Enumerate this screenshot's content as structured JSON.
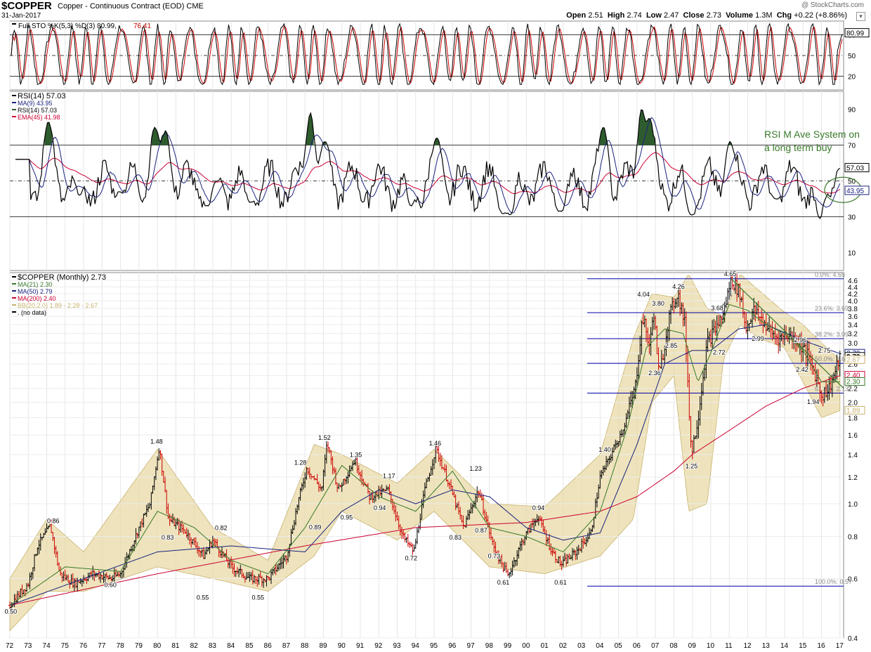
{
  "header": {
    "symbol": "$COPPER",
    "description": "Copper - Continuous Contract (EOD) CME",
    "date": "31-Jan-2017",
    "watermark": "@ StockCharts.com",
    "quote": {
      "open_label": "Open",
      "open": "2.51",
      "high_label": "High",
      "high": "2.74",
      "low_label": "Low",
      "low": "2.47",
      "close_label": "Close",
      "close": "2.73",
      "volume_label": "Volume",
      "volume": "1.3M",
      "chg_label": "Chg",
      "chg": "+0.22 (+8.86%)"
    }
  },
  "annotation": "RSI M Ave System on\na long term buy",
  "colors": {
    "price_up": "#000000",
    "price_down": "#cc0000",
    "ma21": "#3a7a2a",
    "ma50": "#1a237e",
    "ma200": "#cc0033",
    "bb_fill": "#e8d9a6",
    "bb_line": "#c9b26e",
    "fib": "#0000aa",
    "rsi_fill": "#2f5c2f",
    "sto_k": "#000000",
    "sto_d": "#cc0000",
    "note": "#3a7a2a"
  },
  "chart_data": [
    {
      "type": "line",
      "panel": "stochastic",
      "legend": [
        "Full STO %K(5,3) %D(3) 80.99, 76.41"
      ],
      "y_ticks": [
        "80",
        "50",
        "20"
      ],
      "current_k": "80.99",
      "current_d": "76.41",
      "ylim": [
        0,
        100
      ]
    },
    {
      "type": "line",
      "panel": "rsi",
      "legend": [
        "RSI(14) 57.03",
        "MA(9) 43.95",
        "RSI(14) 57.03",
        "EMA(45) 41.98"
      ],
      "y_ticks": [
        "90",
        "70",
        "50",
        "30",
        "10"
      ],
      "current_rsi": "57.03",
      "current_ma": "43.95",
      "current_ema": "41.98",
      "ylim": [
        0,
        100
      ]
    },
    {
      "type": "line",
      "panel": "price",
      "legend": [
        "$COPPER (Monthly) 2.73",
        "MA(21) 2.30",
        "MA(50) 2.79",
        "MA(200) 2.40",
        "BB(20,2.0) 1.89 - 2.28 - 2.67",
        ". (no data)"
      ],
      "y_scale": "log",
      "y_ticks": [
        0.4,
        0.6,
        0.8,
        1.0,
        1.2,
        1.4,
        1.6,
        1.8,
        2.0,
        2.2,
        2.4,
        2.6,
        2.8,
        3.0,
        3.2,
        3.4,
        3.6,
        3.8,
        4.0,
        4.2,
        4.4,
        4.6
      ],
      "y_tick_labels": [
        "0.4",
        "0.6",
        "0.8",
        "1.0",
        "1.2",
        "1.4",
        "1.6",
        "1.8",
        "2.0",
        "2.2",
        "2.4",
        "2.6",
        "2.8",
        "3.0",
        "3.2",
        "3.4",
        "3.6",
        "3.8",
        "4.0",
        "4.2",
        "4.4",
        "4.6"
      ],
      "x_tick_labels": [
        "72",
        "73",
        "74",
        "75",
        "76",
        "77",
        "78",
        "79",
        "80",
        "81",
        "82",
        "83",
        "84",
        "85",
        "86",
        "87",
        "88",
        "89",
        "90",
        "91",
        "92",
        "93",
        "94",
        "95",
        "96",
        "97",
        "98",
        "99",
        "00",
        "01",
        "02",
        "03",
        "04",
        "05",
        "06",
        "07",
        "08",
        "09",
        "10",
        "11",
        "12",
        "13",
        "14",
        "15",
        "16",
        "17"
      ],
      "x_start_year": 1972,
      "series": [
        {
          "name": "$COPPER (Monthly)",
          "x": [
            1972.0,
            1973.0,
            1973.5,
            1974.2,
            1974.7,
            1975.5,
            1976.5,
            1977.5,
            1978.0,
            1979.0,
            1979.6,
            1980.1,
            1980.6,
            1981.5,
            1982.5,
            1983.0,
            1984.0,
            1985.0,
            1986.0,
            1987.0,
            1987.6,
            1988.1,
            1988.9,
            1989.2,
            1989.8,
            1990.7,
            1991.5,
            1992.5,
            1993.3,
            1993.9,
            1994.5,
            1995.1,
            1995.8,
            1996.6,
            1997.4,
            1998.2,
            1999.0,
            1999.8,
            2000.6,
            2001.4,
            2001.9,
            2002.7,
            2003.5,
            2004.0,
            2004.6,
            2005.3,
            2005.9,
            2006.3,
            2006.7,
            2006.9,
            2007.2,
            2007.7,
            2008.2,
            2008.6,
            2008.95,
            2009.3,
            2009.8,
            2010.3,
            2010.7,
            2011.1,
            2011.6,
            2011.9,
            2012.3,
            2012.8,
            2013.2,
            2013.7,
            2014.2,
            2014.7,
            2015.2,
            2015.7,
            2016.0,
            2016.4,
            2016.8,
            2017.0
          ],
          "y": [
            0.5,
            0.58,
            0.75,
            0.86,
            0.62,
            0.58,
            0.62,
            0.6,
            0.62,
            0.85,
            1.0,
            1.48,
            0.9,
            0.83,
            0.7,
            0.78,
            0.65,
            0.6,
            0.6,
            0.7,
            1.0,
            1.28,
            1.1,
            1.52,
            1.1,
            1.35,
            1.05,
            1.1,
            0.8,
            0.72,
            1.1,
            1.46,
            1.15,
            0.85,
            1.1,
            0.75,
            0.61,
            0.78,
            0.92,
            0.72,
            0.66,
            0.72,
            0.82,
            1.2,
            1.4,
            1.7,
            2.2,
            3.6,
            2.9,
            3.8,
            2.36,
            3.5,
            4.26,
            3.4,
            1.4,
            1.8,
            3.0,
            3.35,
            3.68,
            4.65,
            4.2,
            3.3,
            3.75,
            3.5,
            3.25,
            3.1,
            3.2,
            3.05,
            2.8,
            2.4,
            2.1,
            2.2,
            2.5,
            2.73
          ]
        },
        {
          "name": "MA(21)",
          "x": [
            1972,
            1975,
            1978,
            1980,
            1982,
            1984,
            1986,
            1988,
            1990,
            1992,
            1994,
            1996,
            1998,
            2000,
            2002,
            2004,
            2005.5,
            2006.5,
            2007.5,
            2008.5,
            2009.3,
            2010,
            2011,
            2012,
            2013,
            2014,
            2015,
            2016,
            2017
          ],
          "y": [
            0.5,
            0.65,
            0.63,
            0.95,
            0.85,
            0.68,
            0.62,
            0.85,
            1.3,
            1.05,
            0.95,
            1.25,
            0.85,
            0.8,
            0.72,
            0.95,
            1.7,
            2.9,
            3.3,
            3.2,
            2.3,
            2.8,
            3.9,
            3.75,
            3.4,
            3.2,
            2.85,
            2.3,
            2.3
          ]
        },
        {
          "name": "MA(50)",
          "x": [
            1972,
            1976,
            1980,
            1984,
            1988,
            1990,
            1992,
            1994,
            1996,
            1998,
            2000,
            2002,
            2004,
            2006,
            2007.5,
            2009,
            2010,
            2011.5,
            2013,
            2015,
            2017
          ],
          "y": [
            0.5,
            0.6,
            0.72,
            0.75,
            0.72,
            0.95,
            1.1,
            1.0,
            1.1,
            1.05,
            0.85,
            0.78,
            0.82,
            1.5,
            2.6,
            2.85,
            2.85,
            3.3,
            3.4,
            3.05,
            2.79
          ]
        },
        {
          "name": "MA(200)",
          "x": [
            1972,
            1980,
            1988,
            1994,
            2000,
            2004,
            2006,
            2008,
            2009,
            2011,
            2013,
            2015,
            2017
          ],
          "y": [
            0.5,
            0.62,
            0.75,
            0.85,
            0.88,
            0.95,
            1.05,
            1.25,
            1.4,
            1.65,
            1.95,
            2.2,
            2.4
          ]
        },
        {
          "name": "BB(20,2.0) upper",
          "x": [
            1972,
            1974,
            1976,
            1980,
            1983,
            1986,
            1988.5,
            1990,
            1993,
            1995,
            1998,
            2001,
            2004,
            2005.8,
            2006.8,
            2008,
            2008.8,
            2009.8,
            2010.7,
            2011.6,
            2012.6,
            2014,
            2015,
            2016,
            2017
          ],
          "y": [
            0.6,
            0.9,
            0.72,
            1.45,
            0.85,
            0.68,
            1.5,
            1.4,
            1.15,
            1.45,
            1.0,
            0.98,
            1.4,
            3.1,
            4.2,
            4.1,
            4.8,
            3.8,
            3.6,
            4.8,
            4.3,
            3.7,
            3.4,
            3.0,
            2.67
          ]
        },
        {
          "name": "BB(20,2.0) lower",
          "x": [
            1972,
            1974,
            1976,
            1980,
            1983,
            1986,
            1988.5,
            1990,
            1993,
            1995,
            1998,
            2001,
            2004,
            2005.8,
            2006.8,
            2008,
            2008.8,
            2009.8,
            2010.7,
            2011.6,
            2012.6,
            2014,
            2015,
            2016,
            2017
          ],
          "y": [
            0.42,
            0.55,
            0.55,
            0.65,
            0.6,
            0.55,
            0.7,
            0.95,
            0.78,
            0.95,
            0.65,
            0.62,
            0.7,
            0.9,
            2.0,
            2.4,
            0.95,
            1.0,
            2.7,
            3.4,
            3.1,
            2.9,
            2.3,
            1.8,
            1.89
          ]
        }
      ],
      "fibonacci": [
        {
          "label": "0.0%: 4.65",
          "value": 4.65
        },
        {
          "label": "23.6%: 3.69",
          "value": 3.69
        },
        {
          "label": "38.2%: 3.09",
          "value": 3.09
        },
        {
          "label": "50.0%: 2.61",
          "value": 2.61
        },
        {
          "label": "61.8%: 2.13",
          "value": 2.13
        },
        {
          "label": "100.0%: 0.57",
          "value": 0.57
        }
      ],
      "data_labels": [
        {
          "text": "0.50",
          "x": 1972.1,
          "y": 0.5
        },
        {
          "text": "0.86",
          "x": 1974.4,
          "y": 0.86
        },
        {
          "text": "0.60",
          "x": 1977.5,
          "y": 0.6
        },
        {
          "text": "1.48",
          "x": 1980.0,
          "y": 1.48
        },
        {
          "text": "0.83",
          "x": 1980.6,
          "y": 0.83
        },
        {
          "text": "0.82",
          "x": 1983.5,
          "y": 0.82
        },
        {
          "text": "0.55",
          "x": 1982.5,
          "y": 0.55
        },
        {
          "text": "0.55",
          "x": 1985.5,
          "y": 0.55
        },
        {
          "text": "1.28",
          "x": 1987.8,
          "y": 1.28
        },
        {
          "text": "0.89",
          "x": 1988.6,
          "y": 0.89
        },
        {
          "text": "1.52",
          "x": 1989.1,
          "y": 1.52
        },
        {
          "text": "0.95",
          "x": 1990.3,
          "y": 0.95
        },
        {
          "text": "1.35",
          "x": 1990.8,
          "y": 1.35
        },
        {
          "text": "0.94",
          "x": 1992.1,
          "y": 0.94
        },
        {
          "text": "1.17",
          "x": 1992.6,
          "y": 1.17
        },
        {
          "text": "0.72",
          "x": 1993.8,
          "y": 0.72
        },
        {
          "text": "1.46",
          "x": 1995.1,
          "y": 1.46
        },
        {
          "text": "0.83",
          "x": 1996.2,
          "y": 0.83
        },
        {
          "text": "1.23",
          "x": 1997.3,
          "y": 1.23
        },
        {
          "text": "0.87",
          "x": 1997.6,
          "y": 0.87
        },
        {
          "text": "0.73",
          "x": 1998.3,
          "y": 0.73
        },
        {
          "text": "0.61",
          "x": 1998.8,
          "y": 0.61
        },
        {
          "text": "0.94",
          "x": 2000.7,
          "y": 0.94
        },
        {
          "text": "0.61",
          "x": 2001.9,
          "y": 0.61
        },
        {
          "text": "1.40",
          "x": 2004.3,
          "y": 1.4
        },
        {
          "text": "4.04",
          "x": 2006.4,
          "y": 4.04
        },
        {
          "text": "3.80",
          "x": 2007.2,
          "y": 3.8
        },
        {
          "text": "2.36",
          "x": 2007.0,
          "y": 2.36
        },
        {
          "text": "2.85",
          "x": 2007.9,
          "y": 2.85
        },
        {
          "text": "4.26",
          "x": 2008.3,
          "y": 4.26
        },
        {
          "text": "1.25",
          "x": 2009.0,
          "y": 1.25
        },
        {
          "text": "3.68",
          "x": 2010.4,
          "y": 3.68
        },
        {
          "text": "2.72",
          "x": 2010.5,
          "y": 2.72
        },
        {
          "text": "4.65",
          "x": 2011.1,
          "y": 4.65
        },
        {
          "text": "2.99",
          "x": 2012.6,
          "y": 2.99
        },
        {
          "text": "2.96",
          "x": 2014.9,
          "y": 2.96
        },
        {
          "text": "2.75",
          "x": 2016.2,
          "y": 2.75
        },
        {
          "text": "2.42",
          "x": 2015.0,
          "y": 2.42
        },
        {
          "text": "1.94",
          "x": 2015.6,
          "y": 1.94
        }
      ],
      "price_tags": [
        {
          "text": "2.79",
          "y": 2.79,
          "color": "#1a237e"
        },
        {
          "text": "2.73",
          "y": 2.73,
          "color": "#000000"
        },
        {
          "text": "2.67",
          "y": 2.67,
          "color": "#c9b26e"
        },
        {
          "text": "2.40",
          "y": 2.4,
          "color": "#cc0033"
        },
        {
          "text": "2.30",
          "y": 2.3,
          "color": "#3a7a2a"
        },
        {
          "text": "1.89",
          "y": 1.89,
          "color": "#c9b26e"
        }
      ]
    }
  ]
}
